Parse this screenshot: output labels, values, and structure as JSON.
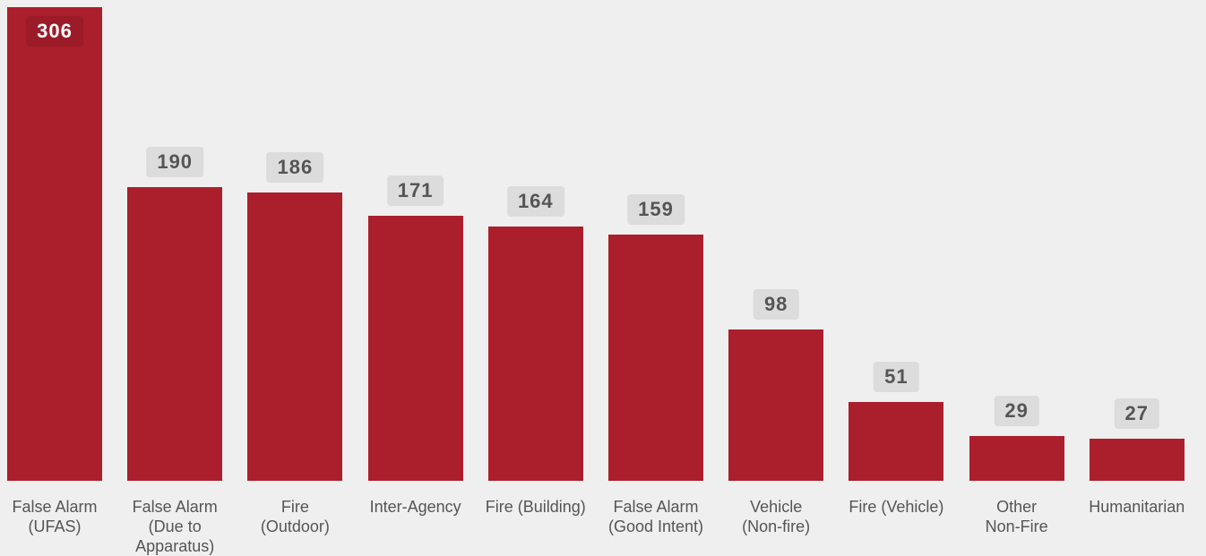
{
  "chart_data": {
    "type": "bar",
    "categories": [
      "False Alarm\n(UFAS)",
      "False Alarm\n(Due to\nApparatus)",
      "Fire\n(Outdoor)",
      "Inter-Agency",
      "Fire (Building)",
      "False Alarm\n(Good Intent)",
      "Vehicle\n(Non-fire)",
      "Fire (Vehicle)",
      "Other\nNon-Fire",
      "Humanitarian"
    ],
    "values": [
      306,
      190,
      186,
      171,
      164,
      159,
      98,
      51,
      29,
      27
    ],
    "color": "#ab1f2d"
  }
}
